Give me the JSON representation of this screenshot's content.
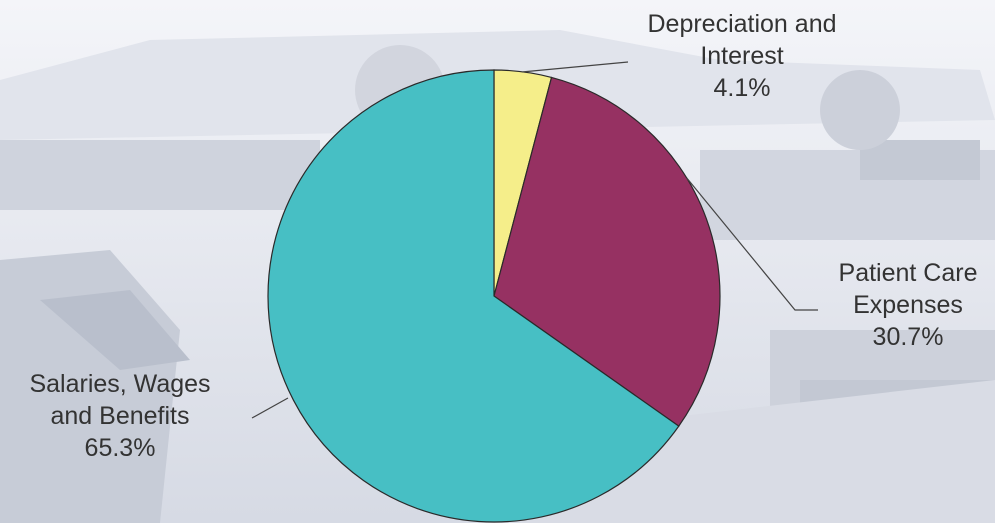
{
  "chart_data": {
    "type": "pie",
    "slices": [
      {
        "label": "Depreciation and Interest",
        "value": 4.1,
        "value_text": "4.1%",
        "color": "#f5ee8a"
      },
      {
        "label": "Patient Care Expenses",
        "value": 30.7,
        "value_text": "30.7%",
        "color": "#963162"
      },
      {
        "label": "Salaries, Wages and Benefits",
        "value": 65.3,
        "value_text": "65.3%",
        "color": "#47bfc4"
      }
    ],
    "start_angle": "12 o'clock",
    "direction": "clockwise"
  },
  "labels": {
    "depr": {
      "line1": "Depreciation and",
      "line2": "Interest",
      "pct": "4.1%"
    },
    "patient": {
      "line1": "Patient Care",
      "line2": "Expenses",
      "pct": "30.7%"
    },
    "salaries": {
      "line1": "Salaries, Wages",
      "line2": "and Benefits",
      "pct": "65.3%"
    }
  }
}
